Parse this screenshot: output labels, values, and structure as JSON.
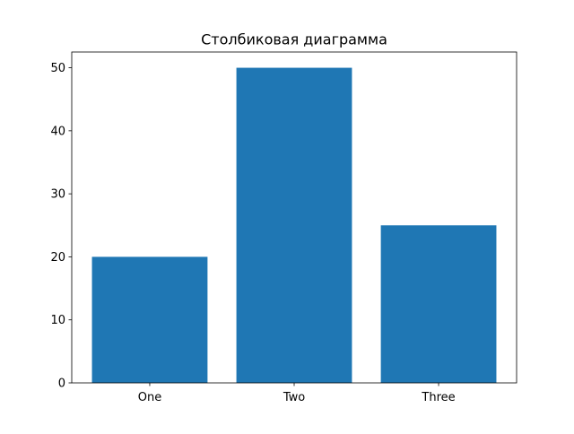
{
  "chart_data": {
    "type": "bar",
    "title": "Столбиковая диаграмма",
    "categories": [
      "One",
      "Two",
      "Three"
    ],
    "values": [
      20,
      50,
      25
    ],
    "xlabel": "",
    "ylabel": "",
    "ylim": [
      0,
      52.5
    ],
    "yticks": [
      0,
      10,
      20,
      30,
      40,
      50
    ],
    "grid": false,
    "bar_color": "#1f77b4"
  }
}
